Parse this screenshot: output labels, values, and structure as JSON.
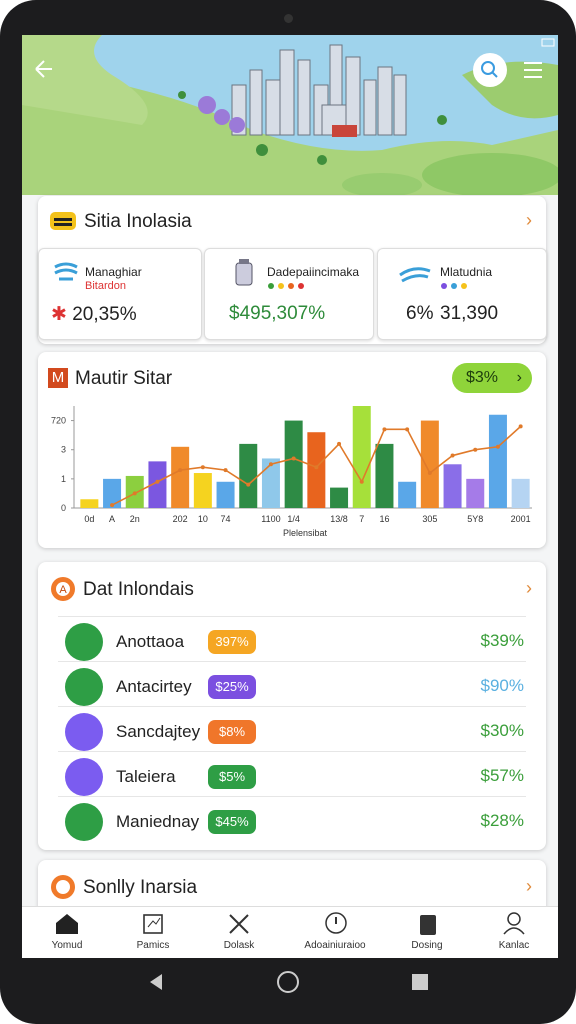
{
  "summary": {
    "title": "Sitia Inolasia",
    "cards": [
      {
        "title": "Managhiar",
        "subtitle": "Bitardon",
        "value": "20,35%"
      },
      {
        "title": "Dadepaiincimaka",
        "value": "$495,307%"
      },
      {
        "title": "Mlatudnia",
        "value": "6%",
        "extra": "31,390"
      }
    ]
  },
  "chart_card": {
    "title": "Mautir Sitar",
    "badge": "$3%",
    "chart_data": {
      "type": "bar",
      "x_label": "Plelensibat",
      "categories": [
        "0d",
        "A",
        "2n",
        null,
        "202",
        "10",
        "74",
        null,
        "1100",
        "1/4",
        null,
        "13/8",
        "7",
        "16",
        null,
        "305",
        null,
        "5Y8",
        null,
        "2001"
      ],
      "series": [
        {
          "colors": [
            "#f5d31f",
            "#5aa7e8",
            "#8ccf3f",
            "#7b57e0",
            "#f08a2a",
            "#f5d31f",
            "#5aa7e8",
            "#2e8b45",
            "#8fc8ea",
            "#2e8b45",
            "#e8641e",
            "#2e8b45",
            "#a6e03a",
            "#2e8b45",
            "#5aa7e8",
            "#f08a2a",
            "#8a6ee8",
            "#a57be8",
            "#5aa7e8",
            "#b5d4f2"
          ],
          "values": [
            0.3,
            1,
            1.1,
            1.6,
            2.1,
            1.2,
            0.9,
            2.2,
            1.7,
            3,
            2.6,
            0.7,
            3.5,
            2.2,
            0.9,
            3,
            1.5,
            1,
            3.2,
            1
          ]
        },
        {
          "type": "line",
          "color": "#e07a2a",
          "values": [
            null,
            0.1,
            0.5,
            0.9,
            1.3,
            1.4,
            1.3,
            0.8,
            1.5,
            1.7,
            1.4,
            2.2,
            0.9,
            2.7,
            2.7,
            1.2,
            1.8,
            2.0,
            2.1,
            2.8
          ]
        }
      ],
      "ylim": [
        0,
        3.5
      ],
      "yticks": [
        0,
        1,
        {
          "value": 2,
          "label": "3"
        },
        {
          "value": 3,
          "label": "720"
        }
      ]
    }
  },
  "list": {
    "title": "Dat Inlondais",
    "rows": [
      {
        "name": "Anottaoa",
        "tag": "397%",
        "value": "$39%",
        "avatar_color": "#2e9e45",
        "tag_color": "#f5a623",
        "value_color": "#3a9e3a"
      },
      {
        "name": "Antacirtey",
        "tag": "$25%",
        "value": "$90%",
        "avatar_color": "#2e9e45",
        "tag_color": "#7b4fe0",
        "value_color": "#5ab0e0"
      },
      {
        "name": "Sancdajtey",
        "tag": "$8%",
        "value": "$30%",
        "avatar_color": "#7b5cf0",
        "tag_color": "#f0762a",
        "value_color": "#3a9e3a"
      },
      {
        "name": "Taleiera",
        "tag": "$5%",
        "value": "$57%",
        "avatar_color": "#7b5cf0",
        "tag_color": "#2e9e45",
        "value_color": "#3a9e3a"
      },
      {
        "name": "Maniednay",
        "tag": "$45%",
        "value": "$28%",
        "avatar_color": "#2e9e45",
        "tag_color": "#2e9e45",
        "value_color": "#3a9e3a"
      }
    ]
  },
  "section": {
    "title": "Sonlly Inarsia"
  },
  "nav": [
    "Yomud",
    "Pamics",
    "Dolask",
    "Adoainiuraioo",
    "Dosing",
    "Kanlac"
  ]
}
